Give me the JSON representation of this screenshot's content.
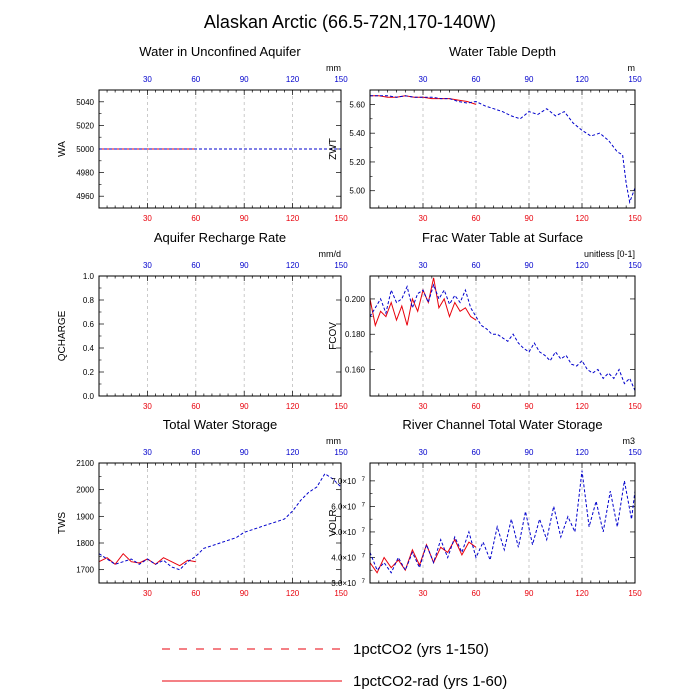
{
  "title": "Alaskan Arctic (66.5-72N,170-140W)",
  "series_styles": [
    {
      "name": "1pctCO2 (yrs 1-150)",
      "color": "#0000cc",
      "dash": "3,2"
    },
    {
      "name": "1pctCO2-rad (yrs 1-60)",
      "color": "#e8000b",
      "dash": ""
    }
  ],
  "legend": {
    "items": [
      {
        "label": "1pctCO2 (yrs 1-150)",
        "color": "#0000cc",
        "line_color": "#e8000b",
        "dash": "8,9"
      },
      {
        "label": "1pctCO2-rad (yrs 1-60)",
        "color": "#e8000b",
        "line_color": "#e8000b",
        "dash": ""
      }
    ]
  },
  "chart_data": [
    {
      "type": "line",
      "title": "Water in Unconfined Aquifer",
      "ylabel": "WA",
      "units": "mm",
      "xlim": [
        0,
        150
      ],
      "ylim": [
        4950,
        5050
      ],
      "yticks": [
        4960,
        4980,
        5000,
        5020,
        5040
      ],
      "ytick_labels": [
        "4960",
        "4980",
        "5000",
        "5020",
        "5040"
      ],
      "xticks": [
        30,
        60,
        90,
        120,
        150
      ],
      "series": [
        {
          "x": [
            0,
            150
          ],
          "y": [
            5000,
            5000
          ]
        },
        {
          "x": [
            0,
            60
          ],
          "y": [
            5000,
            5000
          ]
        }
      ]
    },
    {
      "type": "line",
      "title": "Water Table Depth",
      "ylabel": "ZWT",
      "units": "m",
      "xlim": [
        0,
        150
      ],
      "ylim": [
        4.88,
        5.7
      ],
      "yticks": [
        5.0,
        5.2,
        5.4,
        5.6
      ],
      "ytick_labels": [
        "5.00",
        "5.20",
        "5.40",
        "5.60"
      ],
      "xticks": [
        30,
        60,
        90,
        120,
        150
      ],
      "series": [
        {
          "x": [
            0,
            5,
            10,
            15,
            20,
            25,
            30,
            35,
            40,
            45,
            50,
            55,
            60,
            65,
            70,
            75,
            80,
            85,
            90,
            95,
            100,
            105,
            110,
            115,
            120,
            125,
            130,
            135,
            140,
            143,
            145,
            147,
            150
          ],
          "y": [
            5.66,
            5.66,
            5.66,
            5.65,
            5.66,
            5.65,
            5.65,
            5.65,
            5.64,
            5.64,
            5.62,
            5.61,
            5.62,
            5.59,
            5.57,
            5.55,
            5.52,
            5.5,
            5.55,
            5.53,
            5.57,
            5.52,
            5.55,
            5.47,
            5.42,
            5.38,
            5.4,
            5.35,
            5.27,
            5.25,
            5.05,
            4.92,
            5.02
          ]
        },
        {
          "x": [
            0,
            5,
            10,
            15,
            20,
            25,
            30,
            35,
            40,
            45,
            50,
            55,
            60
          ],
          "y": [
            5.66,
            5.66,
            5.65,
            5.65,
            5.66,
            5.65,
            5.65,
            5.64,
            5.64,
            5.64,
            5.63,
            5.62,
            5.6
          ]
        }
      ]
    },
    {
      "type": "line",
      "title": "Aquifer Recharge Rate",
      "ylabel": "QCHARGE",
      "units": "mm/d",
      "xlim": [
        0,
        150
      ],
      "ylim": [
        0,
        1
      ],
      "yticks": [
        0,
        0.2,
        0.4,
        0.6,
        0.8,
        1.0
      ],
      "ytick_labels": [
        "0.0",
        "0.2",
        "0.4",
        "0.6",
        "0.8",
        "1.0"
      ],
      "xticks": [
        30,
        60,
        90,
        120,
        150
      ],
      "series": [
        {
          "x": [
            0,
            150
          ],
          "y": [
            0,
            0
          ]
        },
        {
          "x": [
            0,
            60
          ],
          "y": [
            0,
            0
          ]
        }
      ]
    },
    {
      "type": "line",
      "title": "Frac Water Table at Surface",
      "ylabel": "FCOV",
      "units": "unitless [0-1]",
      "xlim": [
        0,
        150
      ],
      "ylim": [
        0.145,
        0.213
      ],
      "yticks": [
        0.16,
        0.18,
        0.2
      ],
      "ytick_labels": [
        "0.160",
        "0.180",
        "0.200"
      ],
      "xticks": [
        30,
        60,
        90,
        120,
        150
      ],
      "series": [
        {
          "x": [
            0,
            3,
            6,
            9,
            12,
            15,
            18,
            21,
            24,
            27,
            30,
            33,
            36,
            39,
            42,
            45,
            48,
            51,
            54,
            57,
            60,
            63,
            66,
            69,
            72,
            75,
            78,
            81,
            84,
            87,
            90,
            93,
            96,
            99,
            102,
            105,
            108,
            111,
            114,
            117,
            120,
            123,
            126,
            129,
            132,
            135,
            138,
            141,
            144,
            147,
            150
          ],
          "y": [
            0.19,
            0.195,
            0.2,
            0.192,
            0.205,
            0.198,
            0.2,
            0.207,
            0.195,
            0.203,
            0.205,
            0.198,
            0.208,
            0.2,
            0.205,
            0.197,
            0.202,
            0.198,
            0.205,
            0.195,
            0.19,
            0.185,
            0.183,
            0.18,
            0.18,
            0.178,
            0.176,
            0.18,
            0.175,
            0.172,
            0.17,
            0.175,
            0.17,
            0.168,
            0.165,
            0.17,
            0.166,
            0.168,
            0.163,
            0.162,
            0.165,
            0.16,
            0.158,
            0.16,
            0.155,
            0.158,
            0.155,
            0.16,
            0.152,
            0.155,
            0.148
          ]
        },
        {
          "x": [
            0,
            3,
            6,
            9,
            12,
            15,
            18,
            21,
            24,
            27,
            30,
            33,
            36,
            39,
            42,
            45,
            48,
            51,
            54,
            57,
            60
          ],
          "y": [
            0.2,
            0.185,
            0.193,
            0.19,
            0.198,
            0.188,
            0.196,
            0.185,
            0.2,
            0.193,
            0.205,
            0.198,
            0.212,
            0.195,
            0.2,
            0.19,
            0.198,
            0.193,
            0.195,
            0.19,
            0.188
          ]
        }
      ]
    },
    {
      "type": "line",
      "title": "Total Water Storage",
      "ylabel": "TWS",
      "units": "mm",
      "xlim": [
        0,
        150
      ],
      "ylim": [
        1650,
        2100
      ],
      "yticks": [
        1700,
        1800,
        1900,
        2000,
        2100
      ],
      "ytick_labels": [
        "1700",
        "1800",
        "1900",
        "2000",
        "2100"
      ],
      "xticks": [
        30,
        60,
        90,
        120,
        150
      ],
      "series": [
        {
          "x": [
            0,
            5,
            10,
            15,
            20,
            25,
            30,
            35,
            40,
            45,
            50,
            55,
            60,
            65,
            70,
            75,
            80,
            85,
            90,
            95,
            100,
            105,
            110,
            115,
            120,
            125,
            130,
            135,
            140,
            145,
            150
          ],
          "y": [
            1760,
            1740,
            1720,
            1730,
            1740,
            1720,
            1740,
            1720,
            1735,
            1710,
            1700,
            1730,
            1750,
            1780,
            1790,
            1800,
            1810,
            1820,
            1840,
            1850,
            1860,
            1870,
            1880,
            1890,
            1920,
            1960,
            1990,
            2010,
            2060,
            2040,
            2010
          ]
        },
        {
          "x": [
            0,
            5,
            10,
            15,
            20,
            25,
            30,
            35,
            40,
            45,
            50,
            55,
            60
          ],
          "y": [
            1730,
            1745,
            1720,
            1760,
            1730,
            1725,
            1740,
            1720,
            1745,
            1730,
            1715,
            1735,
            1730
          ]
        }
      ]
    },
    {
      "type": "line",
      "title": "River Channel Total Water Storage",
      "ylabel": "VOLR",
      "units": "m3",
      "xlim": [
        0,
        150
      ],
      "ylim": [
        30000000,
        77000000
      ],
      "yticks": [
        30000000,
        40000000,
        50000000,
        60000000,
        70000000
      ],
      "ytick_labels": [
        "3.0",
        "4.0",
        "5.0",
        "6.0",
        "7.0"
      ],
      "ytick_exp": "7",
      "xticks": [
        30,
        60,
        90,
        120,
        150
      ],
      "series": [
        {
          "x": [
            0,
            4,
            8,
            12,
            16,
            20,
            24,
            28,
            32,
            36,
            40,
            44,
            48,
            52,
            56,
            60,
            64,
            68,
            72,
            76,
            80,
            84,
            88,
            92,
            96,
            100,
            104,
            108,
            112,
            116,
            120,
            124,
            128,
            132,
            136,
            140,
            144,
            148,
            150
          ],
          "y": [
            42000000,
            35000000,
            38000000,
            34000000,
            40000000,
            35000000,
            42000000,
            36000000,
            45000000,
            38000000,
            47000000,
            40000000,
            48000000,
            42000000,
            50000000,
            40000000,
            46000000,
            39000000,
            52000000,
            43000000,
            55000000,
            44000000,
            58000000,
            45000000,
            55000000,
            47000000,
            60000000,
            48000000,
            56000000,
            50000000,
            74000000,
            52000000,
            62000000,
            50000000,
            66000000,
            52000000,
            70000000,
            55000000,
            66000000
          ]
        },
        {
          "x": [
            0,
            4,
            8,
            12,
            16,
            20,
            24,
            28,
            32,
            36,
            40,
            44,
            48,
            52,
            56,
            60
          ],
          "y": [
            38000000,
            34000000,
            40000000,
            36000000,
            39000000,
            35000000,
            43000000,
            37000000,
            45000000,
            38000000,
            44000000,
            42000000,
            47000000,
            41000000,
            46000000,
            44000000
          ]
        }
      ]
    }
  ]
}
